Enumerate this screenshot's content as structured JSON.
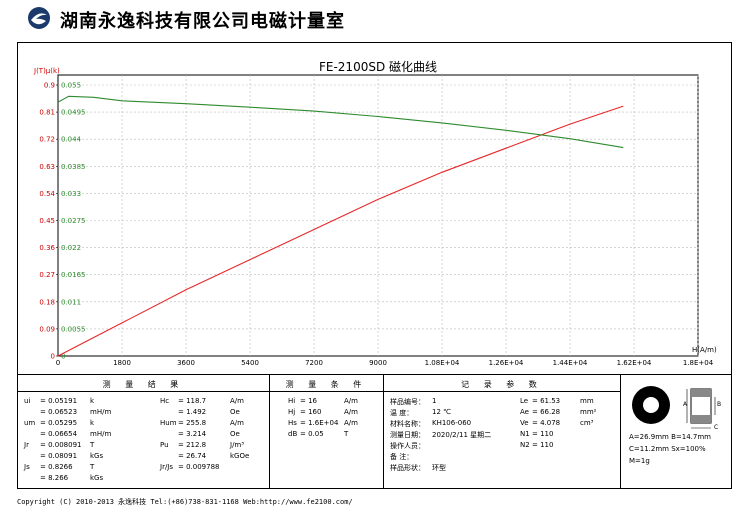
{
  "header": {
    "company": "湖南永逸科技有限公司电磁计量室"
  },
  "chart_data": {
    "type": "line",
    "title": "FE-2100SD 磁化曲线",
    "xlabel": "H(A/m)",
    "ylabel": "J(T)μ(k)",
    "xlim": [
      0,
      18000
    ],
    "ylim_left": [
      0,
      0.9
    ],
    "ylim_right": [
      0,
      0.055
    ],
    "x_ticks": [
      "0",
      "1800",
      "3600",
      "5400",
      "7200",
      "9000",
      "1.08E+04",
      "1.26E+04",
      "1.44E+04",
      "1.62E+04",
      "1.8E+04"
    ],
    "y_ticks_left": [
      "0",
      "0.09",
      "0.18",
      "0.27",
      "0.36",
      "0.45",
      "0.54",
      "0.63",
      "0.72",
      "0.81",
      "0.9"
    ],
    "y_ticks_right": [
      "0",
      "0.0055",
      "0.011",
      "0.0165",
      "0.022",
      "0.0275",
      "0.033",
      "0.0385",
      "0.044",
      "0.0495",
      "0.055"
    ],
    "grid": true,
    "series": [
      {
        "axis": "left",
        "color": "#e8282a",
        "x": [
          0,
          1800,
          3600,
          5400,
          7200,
          9000,
          10800,
          12600,
          14400,
          15900
        ],
        "y": [
          0,
          0.11,
          0.22,
          0.32,
          0.42,
          0.52,
          0.61,
          0.69,
          0.77,
          0.83
        ]
      },
      {
        "axis": "right",
        "color": "#2e8b2e",
        "x": [
          0,
          300,
          1000,
          1800,
          3600,
          5400,
          7200,
          9000,
          10800,
          12600,
          14400,
          15900
        ],
        "y": [
          0.0515,
          0.0527,
          0.0525,
          0.0518,
          0.0512,
          0.0505,
          0.0497,
          0.0486,
          0.0473,
          0.0458,
          0.0441,
          0.0423
        ]
      }
    ]
  },
  "results": {
    "title": "测 量 结 果",
    "rows": [
      [
        "ui",
        "= 0.05191",
        "k",
        "Hc",
        "= 118.7",
        "A/m"
      ],
      [
        "",
        "= 0.06523",
        "mH/m",
        "",
        "= 1.492",
        "Oe"
      ],
      [
        "um",
        "= 0.05295",
        "k",
        "Hum",
        "= 255.8",
        "A/m"
      ],
      [
        "",
        "= 0.06654",
        "mH/m",
        "",
        "= 3.214",
        "Oe"
      ],
      [
        "Jr",
        "= 0.008091",
        "T",
        "Pu",
        "= 212.8",
        "J/m³"
      ],
      [
        "",
        "= 0.08091",
        "kGs",
        "",
        "= 26.74",
        "kGOe"
      ],
      [
        "Js",
        "= 0.8266",
        "T",
        "Jr/Js",
        "= 0.009788",
        ""
      ],
      [
        "",
        "= 8.266",
        "kGs",
        "",
        "",
        ""
      ]
    ]
  },
  "conditions": {
    "title": "测 量 条 件",
    "rows": [
      [
        "Hi",
        "= 16",
        "A/m"
      ],
      [
        "Hj",
        "= 160",
        "A/m"
      ],
      [
        "Hs",
        "= 1.6E+04",
        "A/m"
      ],
      [
        "dB",
        "= 0.05",
        "T"
      ]
    ]
  },
  "record": {
    "title": "记 录 参 数",
    "rows": [
      [
        "样品编号：",
        "1",
        "Le",
        "= 61.53",
        "mm"
      ],
      [
        "温    度：",
        "12 ℃",
        "Ae",
        "= 66.28",
        "mm²"
      ],
      [
        "材料名称：",
        "KH106-060",
        "Ve",
        "= 4.078",
        "cm³"
      ],
      [
        "测量日期：",
        "2020/2/11 星期二",
        "N1",
        "= 110",
        ""
      ],
      [
        "操作人员：",
        "",
        "N2",
        "= 110",
        ""
      ],
      [
        "备    注：",
        "",
        "",
        "",
        ""
      ],
      [
        "样品形状：",
        "环型",
        "",
        "",
        ""
      ]
    ]
  },
  "shape": {
    "line1": "A=26.9mm  B=14.7mm",
    "line2": "C=11.2mm  Sx=100%",
    "line3": "M=1g",
    "label_a": "A",
    "label_b": "B",
    "label_c": "C"
  },
  "footer": {
    "text": "Copyright (C) 2010-2013 永逸科技  Tel:(+86)738-831-1168  Web:http://www.fe2100.com/"
  }
}
